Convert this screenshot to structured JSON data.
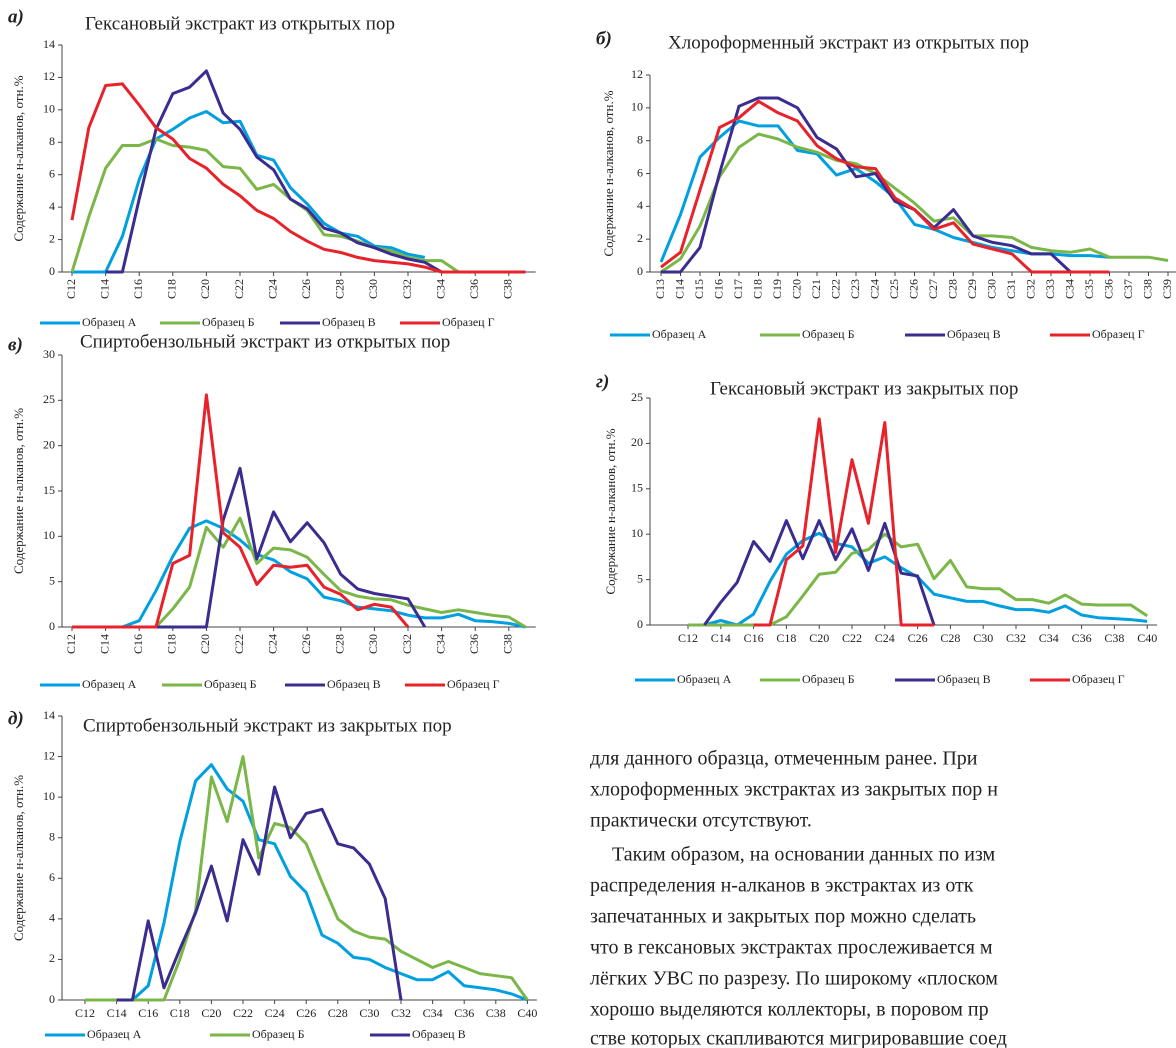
{
  "chart_data": [
    {
      "type": "line",
      "panel": "а)",
      "title": "Гексановый экстракт из открытых пор",
      "ylabel": "Содержание н-алканов, отн.%",
      "categories": [
        "C12",
        null,
        "C14",
        null,
        "C16",
        null,
        "C18",
        null,
        "C20",
        null,
        "C22",
        null,
        "C24",
        null,
        "C26",
        null,
        "C28",
        null,
        "C30",
        null,
        "C32",
        null,
        "C34",
        null,
        "C36",
        null,
        "C38",
        null
      ],
      "ylim": [
        0,
        14
      ],
      "yticks": [
        0,
        2,
        4,
        6,
        8,
        10,
        12,
        14
      ],
      "series": [
        {
          "name": "Образец А",
          "color": "#00a0e0",
          "values": [
            0,
            0,
            0,
            2.2,
            5.7,
            8.2,
            8.8,
            9.5,
            9.9,
            9.2,
            9.3,
            7.2,
            6.9,
            5.2,
            4.2,
            3.0,
            2.4,
            2.2,
            1.6,
            1.5,
            1.1,
            0.9,
            null,
            null,
            null,
            null,
            null,
            null
          ]
        },
        {
          "name": "Образец Б",
          "color": "#7ab648",
          "values": [
            0,
            3.4,
            6.4,
            7.8,
            7.8,
            8.2,
            7.8,
            7.7,
            7.5,
            6.5,
            6.4,
            5.1,
            5.4,
            4.5,
            3.8,
            2.3,
            2.2,
            1.9,
            1.5,
            1.3,
            0.9,
            0.7,
            0.7,
            0,
            null,
            null,
            null,
            null
          ]
        },
        {
          "name": "Образец В",
          "color": "#3a2d8f",
          "values": [
            null,
            null,
            0,
            0,
            4.5,
            8.8,
            11.0,
            11.4,
            12.4,
            9.8,
            8.8,
            7.1,
            6.3,
            4.5,
            3.9,
            2.7,
            2.4,
            1.8,
            1.5,
            1.1,
            0.8,
            0.6,
            0,
            null,
            null,
            null,
            null,
            null
          ]
        },
        {
          "name": "Образец Г",
          "color": "#e8222a",
          "values": [
            3.2,
            8.9,
            11.5,
            11.6,
            10.3,
            8.9,
            8.2,
            7.0,
            6.4,
            5.4,
            4.7,
            3.8,
            3.3,
            2.5,
            1.9,
            1.4,
            1.2,
            0.9,
            0.7,
            0.6,
            0.5,
            0.3,
            0,
            0,
            0,
            0,
            0,
            0
          ]
        }
      ]
    },
    {
      "type": "line",
      "panel": "б)",
      "title": "Хлороформенный экстракт из открытых пор",
      "ylabel": "Содержание н-алканов, отн.%",
      "categories": [
        "C13",
        "C14",
        "C15",
        "C16",
        "C17",
        "C18",
        "C19",
        "C20",
        "C21",
        "C22",
        "C23",
        "C24",
        "C25",
        "C26",
        "C27",
        "C28",
        "C29",
        "C30",
        "C31",
        "C32",
        "C33",
        "C34",
        "C35",
        "C36",
        "C37",
        "C38",
        "C39"
      ],
      "ylim": [
        0,
        12
      ],
      "yticks": [
        0,
        2,
        4,
        6,
        8,
        10,
        12
      ],
      "series": [
        {
          "name": "Образец А",
          "color": "#00a0e0",
          "values": [
            0.6,
            3.5,
            7.0,
            8.2,
            9.2,
            8.9,
            8.9,
            7.4,
            7.2,
            5.9,
            6.3,
            5.5,
            4.5,
            2.9,
            2.6,
            2.1,
            1.8,
            1.5,
            1.3,
            1.1,
            1.1,
            1.0,
            1.0,
            0.9,
            null,
            null,
            null
          ]
        },
        {
          "name": "Образец Б",
          "color": "#7ab648",
          "values": [
            0,
            0.8,
            2.8,
            5.8,
            7.6,
            8.4,
            8.1,
            7.6,
            7.3,
            6.8,
            6.6,
            6.0,
            5.1,
            4.2,
            3.1,
            3.3,
            2.2,
            2.2,
            2.1,
            1.5,
            1.3,
            1.2,
            1.4,
            0.9,
            0.9,
            0.9,
            0.7
          ]
        },
        {
          "name": "Образец В",
          "color": "#3a2d8f",
          "values": [
            0,
            0,
            1.5,
            6.0,
            10.1,
            10.6,
            10.6,
            10.0,
            8.2,
            7.5,
            5.8,
            6.0,
            4.3,
            3.8,
            2.7,
            3.8,
            2.2,
            1.8,
            1.6,
            1.1,
            1.1,
            0,
            null,
            null,
            null,
            null,
            null
          ]
        },
        {
          "name": "Образец Г",
          "color": "#e8222a",
          "values": [
            0.3,
            1.2,
            5.0,
            8.8,
            9.4,
            10.4,
            9.7,
            9.2,
            7.7,
            6.9,
            6.4,
            6.3,
            4.5,
            3.8,
            2.6,
            3.0,
            1.7,
            1.4,
            1.1,
            0,
            0,
            0,
            0,
            0,
            null,
            null,
            null
          ]
        }
      ]
    },
    {
      "type": "line",
      "panel": "в)",
      "title": "Спиртобензольный экстракт из открытых пор",
      "ylabel": "Содержание н-алканов, отн.%",
      "categories": [
        "C12",
        null,
        "C14",
        null,
        "C16",
        null,
        "C18",
        null,
        "C20",
        null,
        "C22",
        null,
        "C24",
        null,
        "C26",
        null,
        "C28",
        null,
        "C30",
        null,
        "C32",
        null,
        "C34",
        null,
        "C36",
        null,
        "C38",
        null
      ],
      "ylim": [
        0,
        30
      ],
      "yticks": [
        0,
        5,
        10,
        15,
        20,
        25,
        30
      ],
      "series": [
        {
          "name": "Образец А",
          "color": "#00a0e0",
          "values": [
            0,
            0,
            0,
            0,
            0.7,
            4.0,
            7.8,
            10.9,
            11.7,
            10.9,
            9.6,
            8.0,
            7.4,
            6.1,
            5.3,
            3.3,
            2.9,
            2.2,
            2.0,
            1.8,
            1.3,
            1.0,
            1.0,
            1.4,
            0.7,
            0.6,
            0.4,
            0
          ]
        },
        {
          "name": "Образец Б",
          "color": "#7ab648",
          "values": [
            0,
            0,
            0,
            0,
            0,
            0,
            2.0,
            4.4,
            11.0,
            8.8,
            12.0,
            7.0,
            8.7,
            8.5,
            7.7,
            5.8,
            4.0,
            3.4,
            3.1,
            3.0,
            2.4,
            2.0,
            1.6,
            1.9,
            1.6,
            1.3,
            1.1,
            0
          ]
        },
        {
          "name": "Образец В",
          "color": "#3a2d8f",
          "values": [
            null,
            null,
            null,
            null,
            0,
            0,
            0,
            0,
            0,
            11.8,
            17.5,
            7.5,
            12.7,
            9.4,
            11.5,
            9.3,
            5.8,
            4.2,
            3.7,
            3.4,
            3.1,
            0,
            null,
            null,
            null,
            null,
            null,
            null
          ]
        },
        {
          "name": "Образец Г",
          "color": "#e8222a",
          "values": [
            0,
            0,
            0,
            0,
            0,
            0,
            7.0,
            7.9,
            25.6,
            10.4,
            8.8,
            4.7,
            6.8,
            6.6,
            6.8,
            4.4,
            3.6,
            1.9,
            2.5,
            2.2,
            0,
            null,
            null,
            null,
            null,
            null,
            null,
            null
          ]
        }
      ]
    },
    {
      "type": "line",
      "panel": "г)",
      "title": "Гексановый экстракт из закрытых пор",
      "ylabel": "Содержание н-алканов, отн.%",
      "categories": [
        "C12",
        null,
        "C14",
        null,
        "C16",
        null,
        "C18",
        null,
        "C20",
        null,
        "C22",
        null,
        "C24",
        null,
        "C26",
        null,
        "C28",
        null,
        "C30",
        null,
        "C32",
        null,
        "C34",
        null,
        "C36",
        null,
        "C38",
        null,
        "C40"
      ],
      "ylim": [
        0,
        25
      ],
      "yticks": [
        0,
        5,
        10,
        15,
        20,
        25
      ],
      "series": [
        {
          "name": "Образец А",
          "color": "#00a0e0",
          "values": [
            0,
            0,
            0.5,
            0,
            1.2,
            4.8,
            7.8,
            9.3,
            10.1,
            9.0,
            8.6,
            6.8,
            7.5,
            6.3,
            5.3,
            3.4,
            3.0,
            2.6,
            2.6,
            2.1,
            1.7,
            1.7,
            1.4,
            2.1,
            1.1,
            0.8,
            0.7,
            0.6,
            0.4
          ]
        },
        {
          "name": "Образец Б",
          "color": "#7ab648",
          "values": [
            0,
            0,
            0,
            0,
            0,
            0,
            0.9,
            3.2,
            5.6,
            5.8,
            7.9,
            8.3,
            10.0,
            8.6,
            8.9,
            5.1,
            7.1,
            4.2,
            4.0,
            4.0,
            2.8,
            2.8,
            2.4,
            3.3,
            2.3,
            2.2,
            2.2,
            2.2,
            1.0
          ]
        },
        {
          "name": "Образец В",
          "color": "#3a2d8f",
          "values": [
            null,
            0,
            2.5,
            4.7,
            9.2,
            7.0,
            11.5,
            7.3,
            11.5,
            7.2,
            10.6,
            6.0,
            11.2,
            5.7,
            5.4,
            0,
            null,
            null,
            null,
            null,
            null,
            null,
            null,
            null,
            null,
            null,
            null,
            null,
            null
          ]
        },
        {
          "name": "Образец Г",
          "color": "#e8222a",
          "values": [
            null,
            null,
            null,
            null,
            0,
            0,
            7.2,
            8.7,
            22.7,
            8.0,
            18.2,
            11.2,
            22.3,
            0,
            0,
            0,
            null,
            null,
            null,
            null,
            null,
            null,
            null,
            null,
            null,
            null,
            null,
            null,
            null
          ]
        }
      ]
    },
    {
      "type": "line",
      "panel": "д)",
      "title": "Спиртобензольный экстракт из закрытых пор",
      "ylabel": "Содержание н-алканов, отн.%",
      "categories": [
        "C12",
        null,
        "C14",
        null,
        "C16",
        null,
        "C18",
        null,
        "C20",
        null,
        "C22",
        null,
        "C24",
        null,
        "C26",
        null,
        "C28",
        null,
        "C30",
        null,
        "C32",
        null,
        "C34",
        null,
        "C36",
        null,
        "C38",
        null,
        "C40"
      ],
      "ylim": [
        0,
        14
      ],
      "yticks": [
        0,
        2,
        4,
        6,
        8,
        10,
        12,
        14
      ],
      "series": [
        {
          "name": "Образец А",
          "color": "#00a0e0",
          "values": [
            0,
            0,
            0,
            0,
            0.7,
            3.8,
            7.8,
            10.8,
            11.6,
            10.4,
            9.8,
            7.9,
            7.7,
            6.1,
            5.3,
            3.2,
            2.8,
            2.1,
            2.0,
            1.6,
            1.3,
            1.0,
            1.0,
            1.4,
            0.7,
            0.6,
            0.5,
            0.3,
            0
          ]
        },
        {
          "name": "Образец Б",
          "color": "#7ab648",
          "values": [
            0,
            0,
            0,
            0,
            0,
            0,
            2.0,
            4.4,
            11.0,
            8.8,
            12.0,
            7.0,
            8.7,
            8.5,
            7.7,
            5.8,
            4.0,
            3.4,
            3.1,
            3.0,
            2.4,
            2.0,
            1.6,
            1.9,
            1.6,
            1.3,
            1.2,
            1.1,
            0
          ]
        },
        {
          "name": "Образец В",
          "color": "#3a2d8f",
          "values": [
            null,
            null,
            0,
            0,
            3.9,
            0.6,
            2.5,
            4.3,
            6.6,
            3.9,
            7.9,
            6.2,
            10.5,
            8.0,
            9.2,
            9.4,
            7.7,
            7.5,
            6.7,
            5.0,
            0,
            null,
            null,
            null,
            null,
            null,
            null,
            null,
            null
          ]
        }
      ]
    }
  ],
  "body_text": [
    "для данного образца, отмеченным ранее. При",
    "хлороформенных экстрактах из закрытых пор н",
    "практически отсутствуют.",
    "Таким образом, на основании данных по изм",
    "распределения н-алканов в экстрактах из отк",
    "запечатанных и закрытых пор можно сделать",
    "что в гексановых экстрактах прослеживается м",
    "лёгких УВС по разрезу. По широкому «плоском",
    "хорошо выделяются коллекторы, в поровом пр",
    "стве которых скапливаются мигрировавшие соед"
  ]
}
